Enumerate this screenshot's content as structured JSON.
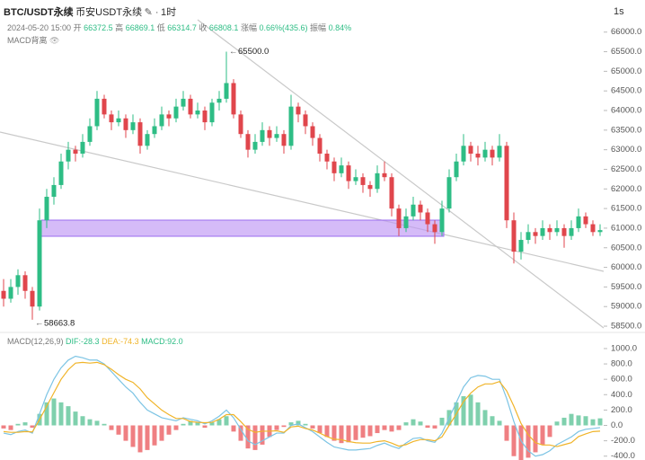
{
  "chart_data": [
    {
      "type": "candlestick",
      "header": {
        "symbol": "BTC/USDT永续",
        "exchange": "币安USDT永续",
        "interval": "1时",
        "resolution": "1s",
        "datetime": "2024-05-20 15:00",
        "fields": [
          {
            "label": "开",
            "value": "66372.5"
          },
          {
            "label": "高",
            "value": "66869.1"
          },
          {
            "label": "低",
            "value": "66314.7"
          },
          {
            "label": "收",
            "value": "66808.1"
          },
          {
            "label": "涨幅",
            "value": "0.66%(435.6)"
          },
          {
            "label": "振幅",
            "value": "0.84%"
          }
        ],
        "indicator": "MACD背离"
      },
      "up_color": "#2ebd85",
      "down_color": "#e0464c",
      "ylim": [
        58400,
        66200
      ],
      "yticks": [
        {
          "value": 58500,
          "label": "58500.0"
        },
        {
          "value": 59000,
          "label": "59000.0"
        },
        {
          "value": 59500,
          "label": "59500.0"
        },
        {
          "value": 60000,
          "label": "60000.0"
        },
        {
          "value": 60500,
          "label": "60500.0"
        },
        {
          "value": 61000,
          "label": "61000.0"
        },
        {
          "value": 61500,
          "label": "61500.0"
        },
        {
          "value": 62000,
          "label": "62000.0"
        },
        {
          "value": 62500,
          "label": "62500.0"
        },
        {
          "value": 63000,
          "label": "63000.0"
        },
        {
          "value": 63500,
          "label": "63500.0"
        },
        {
          "value": 64000,
          "label": "64000.0"
        },
        {
          "value": 64500,
          "label": "64500.0"
        },
        {
          "value": 65000,
          "label": "65000.0"
        },
        {
          "value": 65500,
          "label": "65500.0"
        },
        {
          "value": 66000,
          "label": "66000.0"
        }
      ],
      "annotations": [
        {
          "value": 65500,
          "label": "65500.0"
        },
        {
          "value": 58663.8,
          "label": "58663.8"
        }
      ],
      "candles": [
        [
          59400,
          59700,
          59000,
          59200
        ],
        [
          59200,
          59700,
          59100,
          59500
        ],
        [
          59500,
          59950,
          59300,
          59800
        ],
        [
          59800,
          59900,
          59200,
          59400
        ],
        [
          59400,
          59500,
          58663.8,
          59000
        ],
        [
          59000,
          61500,
          58900,
          61200
        ],
        [
          61200,
          62000,
          61000,
          61800
        ],
        [
          61800,
          62300,
          61600,
          62100
        ],
        [
          62100,
          62900,
          62000,
          62700
        ],
        [
          62700,
          63200,
          62500,
          63000
        ],
        [
          63000,
          63100,
          62700,
          62900
        ],
        [
          62900,
          63400,
          62800,
          63200
        ],
        [
          63200,
          63800,
          63100,
          63600
        ],
        [
          63600,
          64500,
          63500,
          64300
        ],
        [
          64300,
          64400,
          63800,
          63900
        ],
        [
          63900,
          64000,
          63500,
          63700
        ],
        [
          63700,
          64000,
          63600,
          63800
        ],
        [
          63800,
          63900,
          63300,
          63500
        ],
        [
          63500,
          63900,
          63400,
          63700
        ],
        [
          63700,
          63800,
          62900,
          63100
        ],
        [
          63100,
          63500,
          63000,
          63400
        ],
        [
          63400,
          63800,
          63300,
          63600
        ],
        [
          63600,
          64100,
          63500,
          63900
        ],
        [
          63900,
          64000,
          63600,
          63800
        ],
        [
          63800,
          64300,
          63700,
          64100
        ],
        [
          64100,
          64500,
          64000,
          64300
        ],
        [
          64300,
          64400,
          63800,
          63900
        ],
        [
          63900,
          64200,
          63800,
          64000
        ],
        [
          64000,
          64100,
          63500,
          63700
        ],
        [
          63700,
          64300,
          63600,
          64200
        ],
        [
          64200,
          64500,
          64000,
          64300
        ],
        [
          64300,
          65500,
          64200,
          64700
        ],
        [
          64700,
          64800,
          63800,
          63900
        ],
        [
          63900,
          64000,
          63300,
          63400
        ],
        [
          63400,
          63500,
          62800,
          63000
        ],
        [
          63000,
          63400,
          62900,
          63200
        ],
        [
          63200,
          63700,
          63100,
          63500
        ],
        [
          63500,
          63600,
          63100,
          63300
        ],
        [
          63300,
          63600,
          63200,
          63400
        ],
        [
          63400,
          63500,
          62900,
          63100
        ],
        [
          63100,
          64400,
          63000,
          64100
        ],
        [
          64100,
          64200,
          63700,
          63900
        ],
        [
          63900,
          64000,
          63400,
          63600
        ],
        [
          63600,
          63700,
          63100,
          63300
        ],
        [
          63300,
          63400,
          62700,
          62900
        ],
        [
          62900,
          63000,
          62500,
          62700
        ],
        [
          62700,
          62800,
          62200,
          62400
        ],
        [
          62400,
          62800,
          62300,
          62600
        ],
        [
          62600,
          62700,
          62000,
          62200
        ],
        [
          62200,
          62500,
          62100,
          62300
        ],
        [
          62300,
          62400,
          61900,
          62100
        ],
        [
          62100,
          62200,
          61800,
          62000
        ],
        [
          62000,
          62600,
          61900,
          62400
        ],
        [
          62400,
          62700,
          62200,
          62300
        ],
        [
          62300,
          62400,
          61300,
          61500
        ],
        [
          61500,
          61600,
          60800,
          61000
        ],
        [
          61000,
          61500,
          60900,
          61300
        ],
        [
          61300,
          61800,
          61200,
          61600
        ],
        [
          61600,
          61700,
          61200,
          61400
        ],
        [
          61400,
          61500,
          60900,
          61100
        ],
        [
          61100,
          61200,
          60600,
          60900
        ],
        [
          60900,
          61700,
          60800,
          61500
        ],
        [
          61500,
          62500,
          61400,
          62300
        ],
        [
          62300,
          62900,
          62200,
          62700
        ],
        [
          62700,
          63400,
          62600,
          63100
        ],
        [
          63100,
          63200,
          62700,
          62900
        ],
        [
          62900,
          63100,
          62600,
          62800
        ],
        [
          62800,
          63200,
          62700,
          63000
        ],
        [
          63000,
          63100,
          62600,
          62800
        ],
        [
          62800,
          63400,
          62700,
          63100
        ],
        [
          63100,
          63200,
          61000,
          61200
        ],
        [
          61200,
          61400,
          60100,
          60400
        ],
        [
          60400,
          60900,
          60200,
          60700
        ],
        [
          60700,
          61100,
          60600,
          60900
        ],
        [
          60900,
          61000,
          60600,
          60800
        ],
        [
          60800,
          61200,
          60700,
          61000
        ],
        [
          61000,
          61100,
          60700,
          60900
        ],
        [
          60900,
          61200,
          60800,
          61000
        ],
        [
          61000,
          61100,
          60500,
          60800
        ],
        [
          60800,
          61200,
          60700,
          61000
        ],
        [
          61000,
          61500,
          60900,
          61300
        ],
        [
          61300,
          61400,
          61000,
          61100
        ],
        [
          61100,
          61200,
          60800,
          60900
        ],
        [
          60900,
          61100,
          60800,
          60950
        ]
      ]
    },
    {
      "type": "macd",
      "legend": {
        "name": "MACD(12,26,9)",
        "dif": "DIF:-28.3",
        "dea": "DEA:-74.3",
        "macd": "MACD:92.0"
      },
      "dif_color": "#7cc4e4",
      "dea_color": "#f0b429",
      "up_color": "#7fd0ad",
      "down_color": "#ef7f82",
      "ylim": [
        -450,
        1100
      ],
      "yticks": [
        {
          "value": -400,
          "label": "-400.0"
        },
        {
          "value": -200,
          "label": "-200.0"
        },
        {
          "value": 0,
          "label": "0.0"
        },
        {
          "value": 200,
          "label": "200.0"
        },
        {
          "value": 400,
          "label": "400.0"
        },
        {
          "value": 600,
          "label": "600.0"
        },
        {
          "value": 800,
          "label": "800.0"
        },
        {
          "value": 1000,
          "label": "1000.0"
        }
      ],
      "histogram": [
        -40,
        -60,
        20,
        40,
        -30,
        150,
        300,
        350,
        300,
        250,
        180,
        120,
        80,
        60,
        20,
        -60,
        -120,
        -200,
        -280,
        -350,
        -320,
        -260,
        -200,
        -120,
        -60,
        20,
        60,
        40,
        -30,
        40,
        80,
        120,
        -80,
        -200,
        -300,
        -320,
        -250,
        -150,
        -60,
        -20,
        40,
        60,
        20,
        -40,
        -100,
        -150,
        -200,
        -230,
        -220,
        -190,
        -160,
        -140,
        -100,
        -60,
        -80,
        -60,
        40,
        80,
        50,
        -30,
        -40,
        100,
        200,
        300,
        380,
        400,
        300,
        200,
        120,
        60,
        -200,
        -400,
        -450,
        -420,
        -350,
        -250,
        -150,
        50,
        100,
        150,
        130,
        120,
        80,
        92.0
      ],
      "dif": [
        -100,
        -120,
        -80,
        -60,
        -100,
        150,
        400,
        600,
        750,
        850,
        900,
        880,
        850,
        850,
        800,
        700,
        600,
        500,
        420,
        300,
        200,
        150,
        100,
        80,
        60,
        100,
        80,
        60,
        20,
        60,
        120,
        200,
        100,
        -50,
        -200,
        -250,
        -200,
        -150,
        -100,
        -100,
        0,
        20,
        -30,
        -80,
        -150,
        -220,
        -280,
        -300,
        -320,
        -320,
        -310,
        -300,
        -260,
        -230,
        -270,
        -300,
        -230,
        -170,
        -160,
        -200,
        -220,
        -100,
        100,
        300,
        500,
        620,
        650,
        640,
        600,
        600,
        350,
        50,
        -200,
        -330,
        -400,
        -380,
        -330,
        -250,
        -200,
        -150,
        -80,
        -50,
        -40,
        -28.3
      ],
      "dea": [
        -80,
        -90,
        -90,
        -80,
        -85,
        75,
        250,
        425,
        600,
        725,
        810,
        820,
        810,
        820,
        790,
        730,
        660,
        600,
        560,
        475,
        360,
        280,
        200,
        140,
        90,
        90,
        50,
        40,
        35,
        40,
        80,
        140,
        140,
        50,
        -50,
        -90,
        -75,
        -75,
        -70,
        -90,
        -20,
        -10,
        -40,
        -60,
        -100,
        -145,
        -180,
        -185,
        -210,
        -225,
        -230,
        -230,
        -210,
        -200,
        -230,
        -270,
        -250,
        -210,
        -185,
        -185,
        -200,
        -150,
        0,
        150,
        310,
        420,
        500,
        540,
        540,
        570,
        450,
        250,
        25,
        -120,
        -225,
        -255,
        -255,
        -275,
        -250,
        -225,
        -145,
        -110,
        -80,
        -74.3
      ]
    }
  ]
}
